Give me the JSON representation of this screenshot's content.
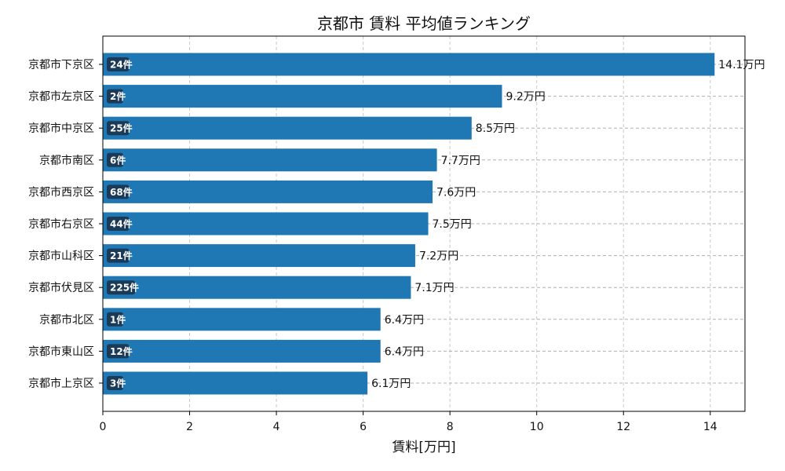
{
  "chart_data": {
    "type": "bar",
    "orientation": "horizontal",
    "title": "京都市 賃料 平均値ランキング",
    "xlabel": "賃料[万円]",
    "ylabel": "",
    "xlim": [
      0,
      14.8
    ],
    "xticks": [
      0,
      2,
      4,
      6,
      8,
      10,
      12,
      14
    ],
    "grid": true,
    "bar_color": "#1f77b4",
    "badge_color": "#1b3a57",
    "categories": [
      "京都市下京区",
      "京都市左京区",
      "京都市中京区",
      "京都市南区",
      "京都市西京区",
      "京都市右京区",
      "京都市山科区",
      "京都市伏見区",
      "京都市北区",
      "京都市東山区",
      "京都市上京区"
    ],
    "values": [
      14.1,
      9.2,
      8.5,
      7.7,
      7.6,
      7.5,
      7.2,
      7.1,
      6.4,
      6.4,
      6.1
    ],
    "value_labels": [
      "14.1万円",
      "9.2万円",
      "8.5万円",
      "7.7万円",
      "7.6万円",
      "7.5万円",
      "7.2万円",
      "7.1万円",
      "6.4万円",
      "6.4万円",
      "6.1万円"
    ],
    "counts": [
      "24件",
      "2件",
      "25件",
      "6件",
      "68件",
      "44件",
      "21件",
      "225件",
      "1件",
      "12件",
      "3件"
    ]
  }
}
